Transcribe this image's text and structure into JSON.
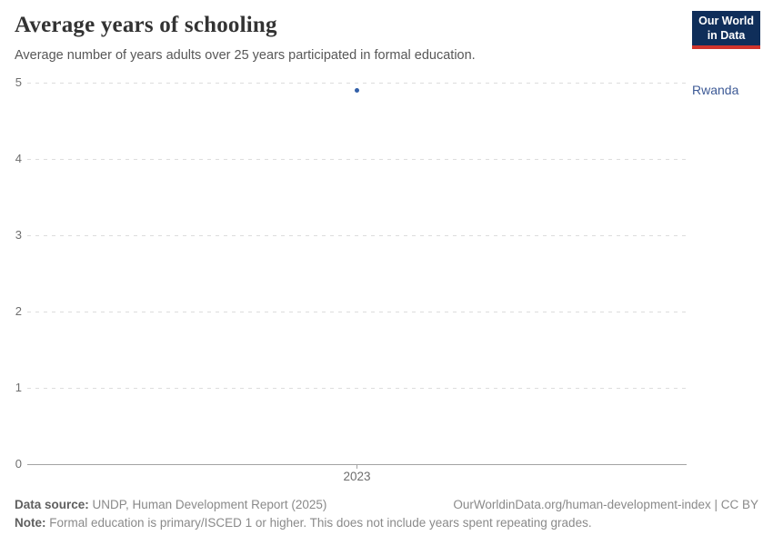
{
  "header": {
    "title": "Average years of schooling",
    "subtitle": "Average number of years adults over 25 years participated in formal education.",
    "logo": {
      "line1": "Our World",
      "line2": "in Data"
    }
  },
  "chart_data": {
    "type": "scatter",
    "title": "Average years of schooling",
    "series": [
      {
        "name": "Rwanda",
        "color": "#3360a9",
        "points": [
          {
            "x": 2023,
            "y": 4.9
          }
        ]
      }
    ],
    "xticks": [
      "2023"
    ],
    "yticks": [
      0,
      1,
      2,
      3,
      4,
      5
    ],
    "ylim": [
      0,
      5
    ],
    "xlabel": "",
    "ylabel": "",
    "grid": "horizontal-dashed",
    "legend_position": "right-entity-label",
    "entity_label": "Rwanda"
  },
  "colors": {
    "entity_label": "#3d5a96",
    "gridline": "#dddddd",
    "axis": "#a3a3a3",
    "tick_text": "#6e6e6e",
    "logo_bg": "#0f2e5a",
    "logo_accent": "#d0342c"
  },
  "footer": {
    "data_source_label": "Data source:",
    "data_source": "UNDP, Human Development Report (2025)",
    "attribution": "OurWorldinData.org/human-development-index | CC BY",
    "note_label": "Note:",
    "note": "Formal education is primary/ISCED 1 or higher. This does not include years spent repeating grades."
  }
}
